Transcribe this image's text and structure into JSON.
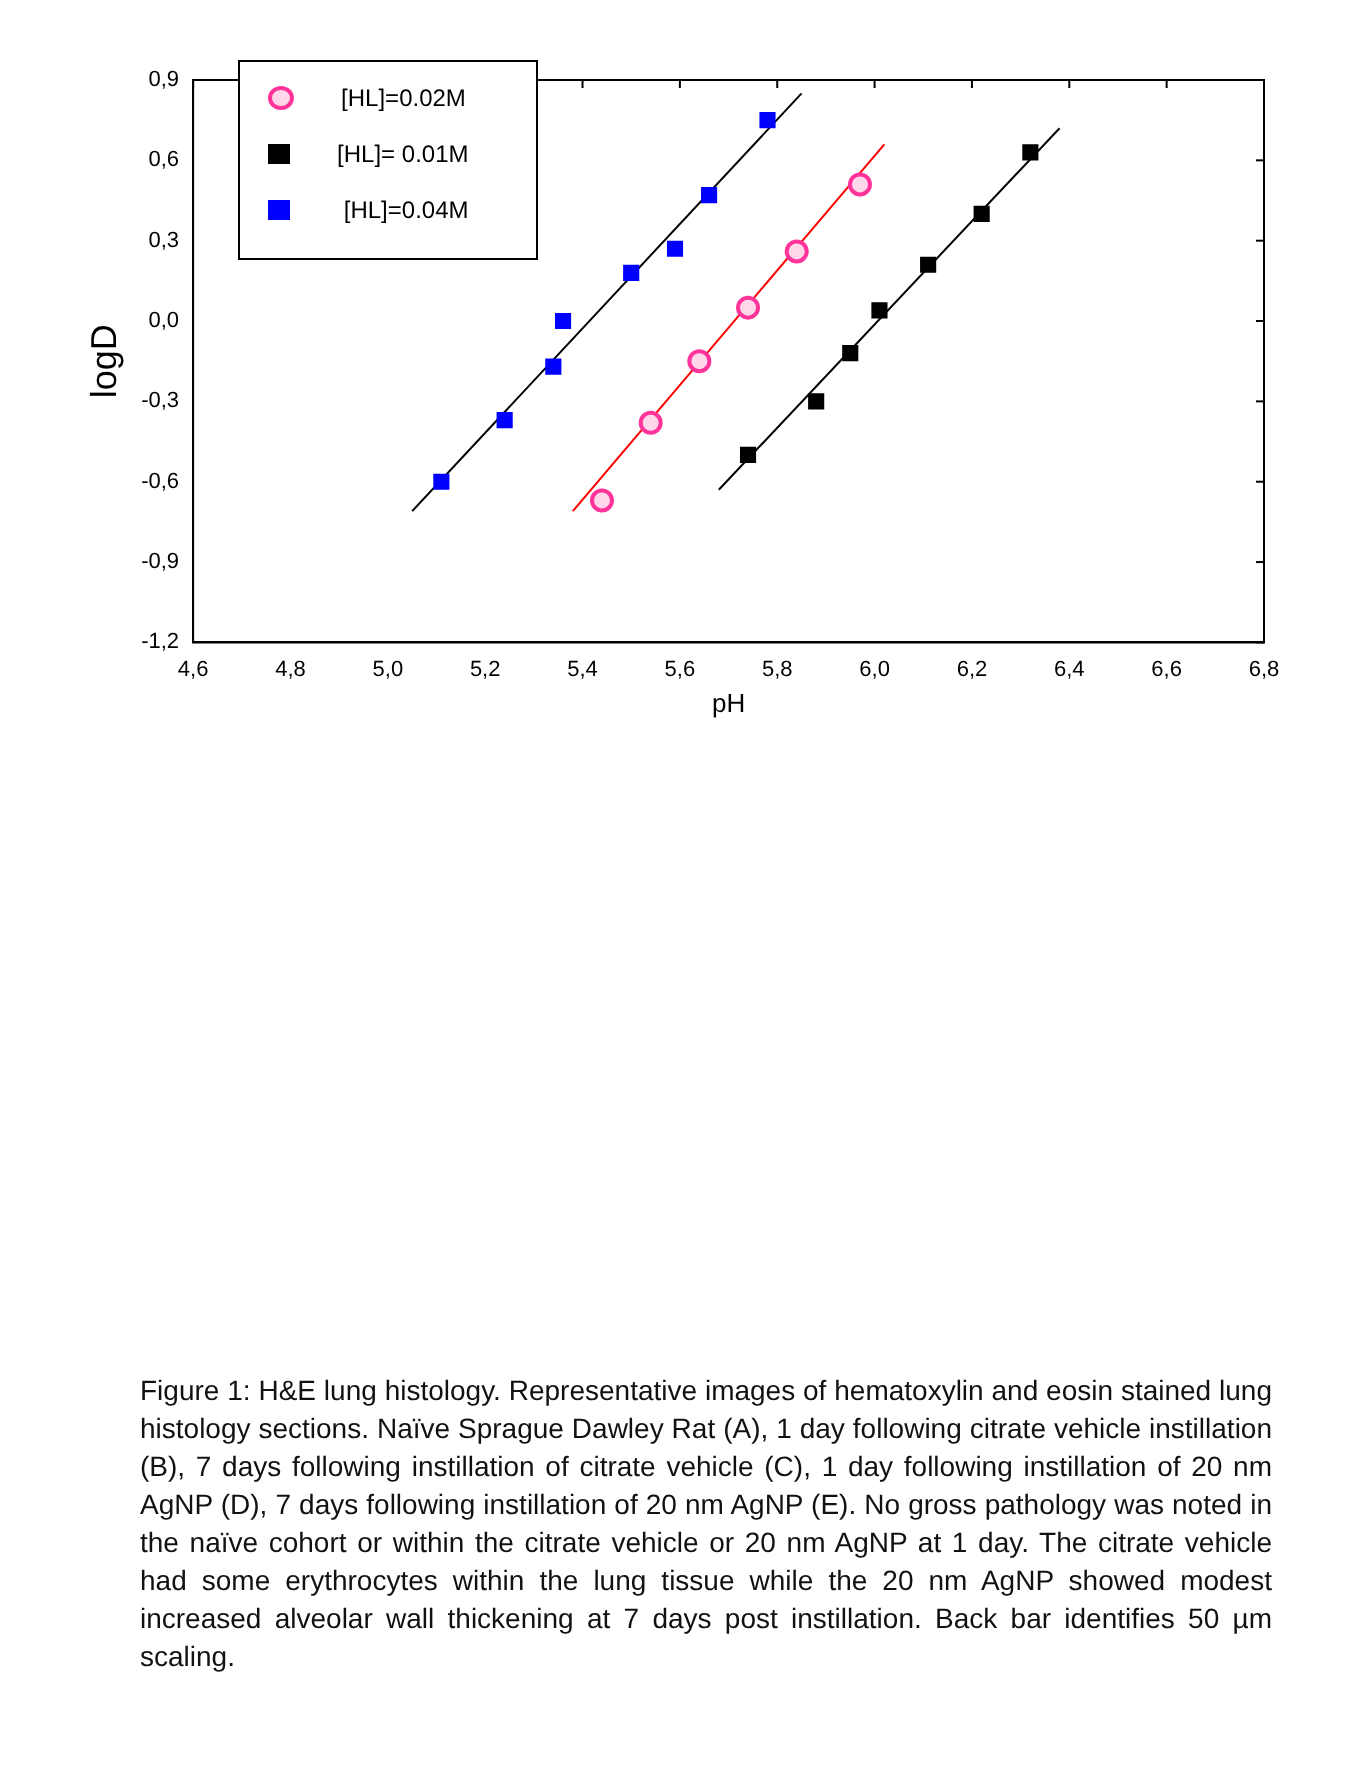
{
  "chart_data": {
    "type": "scatter",
    "xlabel": "pH",
    "ylabel": "logD",
    "xlim": [
      4.6,
      6.8
    ],
    "ylim": [
      -1.2,
      0.9
    ],
    "xticks": [
      {
        "value": 4.6,
        "label": "4,6"
      },
      {
        "value": 4.8,
        "label": "4,8"
      },
      {
        "value": 5.0,
        "label": "5,0"
      },
      {
        "value": 5.2,
        "label": "5,2"
      },
      {
        "value": 5.4,
        "label": "5,4"
      },
      {
        "value": 5.6,
        "label": "5,6"
      },
      {
        "value": 5.8,
        "label": "5,8"
      },
      {
        "value": 6.0,
        "label": "6,0"
      },
      {
        "value": 6.2,
        "label": "6,2"
      },
      {
        "value": 6.4,
        "label": "6,4"
      },
      {
        "value": 6.6,
        "label": "6,6"
      },
      {
        "value": 6.8,
        "label": "6,8"
      }
    ],
    "yticks": [
      {
        "value": -1.2,
        "label": "-1,2"
      },
      {
        "value": -0.9,
        "label": "-0,9"
      },
      {
        "value": -0.6,
        "label": "-0,6"
      },
      {
        "value": -0.3,
        "label": "-0,3"
      },
      {
        "value": 0,
        "label": "0,0"
      },
      {
        "value": 0.3,
        "label": "0,3"
      },
      {
        "value": 0.6,
        "label": "0,6"
      },
      {
        "value": 0.9,
        "label": "0,9"
      }
    ],
    "grid": false,
    "legend": "top left",
    "series": [
      {
        "name": "[HL]=0.02M",
        "color": "#ff3399",
        "marker": "circle",
        "x": [
          5.44,
          5.54,
          5.64,
          5.74,
          5.84,
          5.97
        ],
        "values": [
          -0.67,
          -0.38,
          -0.15,
          0.05,
          0.26,
          0.51
        ]
      },
      {
        "name": "[HL]= 0.01M",
        "color": "#000000",
        "marker": "square",
        "x": [
          5.74,
          5.88,
          5.95,
          6.01,
          6.11,
          6.22,
          6.32
        ],
        "values": [
          -0.5,
          -0.3,
          -0.12,
          0.04,
          0.21,
          0.4,
          0.63
        ]
      },
      {
        "name": " [HL]=0.04M",
        "color": "#0000ff",
        "marker": "square",
        "x": [
          5.11,
          5.24,
          5.34,
          5.36,
          5.5,
          5.59,
          5.66,
          5.78
        ],
        "values": [
          -0.6,
          -0.37,
          -0.17,
          0.0,
          0.18,
          0.27,
          0.47,
          0.75
        ]
      },
      {
        "type": "line",
        "color": "#ff0000",
        "x": [
          5.38,
          6.02
        ],
        "values": [
          -0.71,
          0.66
        ]
      },
      {
        "type": "line",
        "color": "#000000",
        "x": [
          5.68,
          6.38
        ],
        "values": [
          -0.63,
          0.72
        ]
      },
      {
        "type": "line",
        "color": "#000000",
        "x": [
          5.05,
          5.85
        ],
        "values": [
          -0.71,
          0.85
        ]
      }
    ],
    "annotations": [
      "Figure 1: H&E lung histology. Representative images of hematoxylin and eosin stained lung histology sections. Naïve Sprague Dawley Rat (A), 1 day following citrate vehicle instillation (B), 7 days following instillation of citrate vehicle (C), 1 day following instillation of 20 nm AgNP (D), 7 days following instillation of 20 nm AgNP (E). No gross pathology was noted in the naïve cohort or within the citrate vehicle or 20 nm AgNP at 1 day. The citrate vehicle had some erythrocytes within the lung tissue while the 20 nm AgNP showed modest increased alveolar wall thickening at 7 days post instillation. Back bar identifies 50 µm scaling."
    ]
  }
}
